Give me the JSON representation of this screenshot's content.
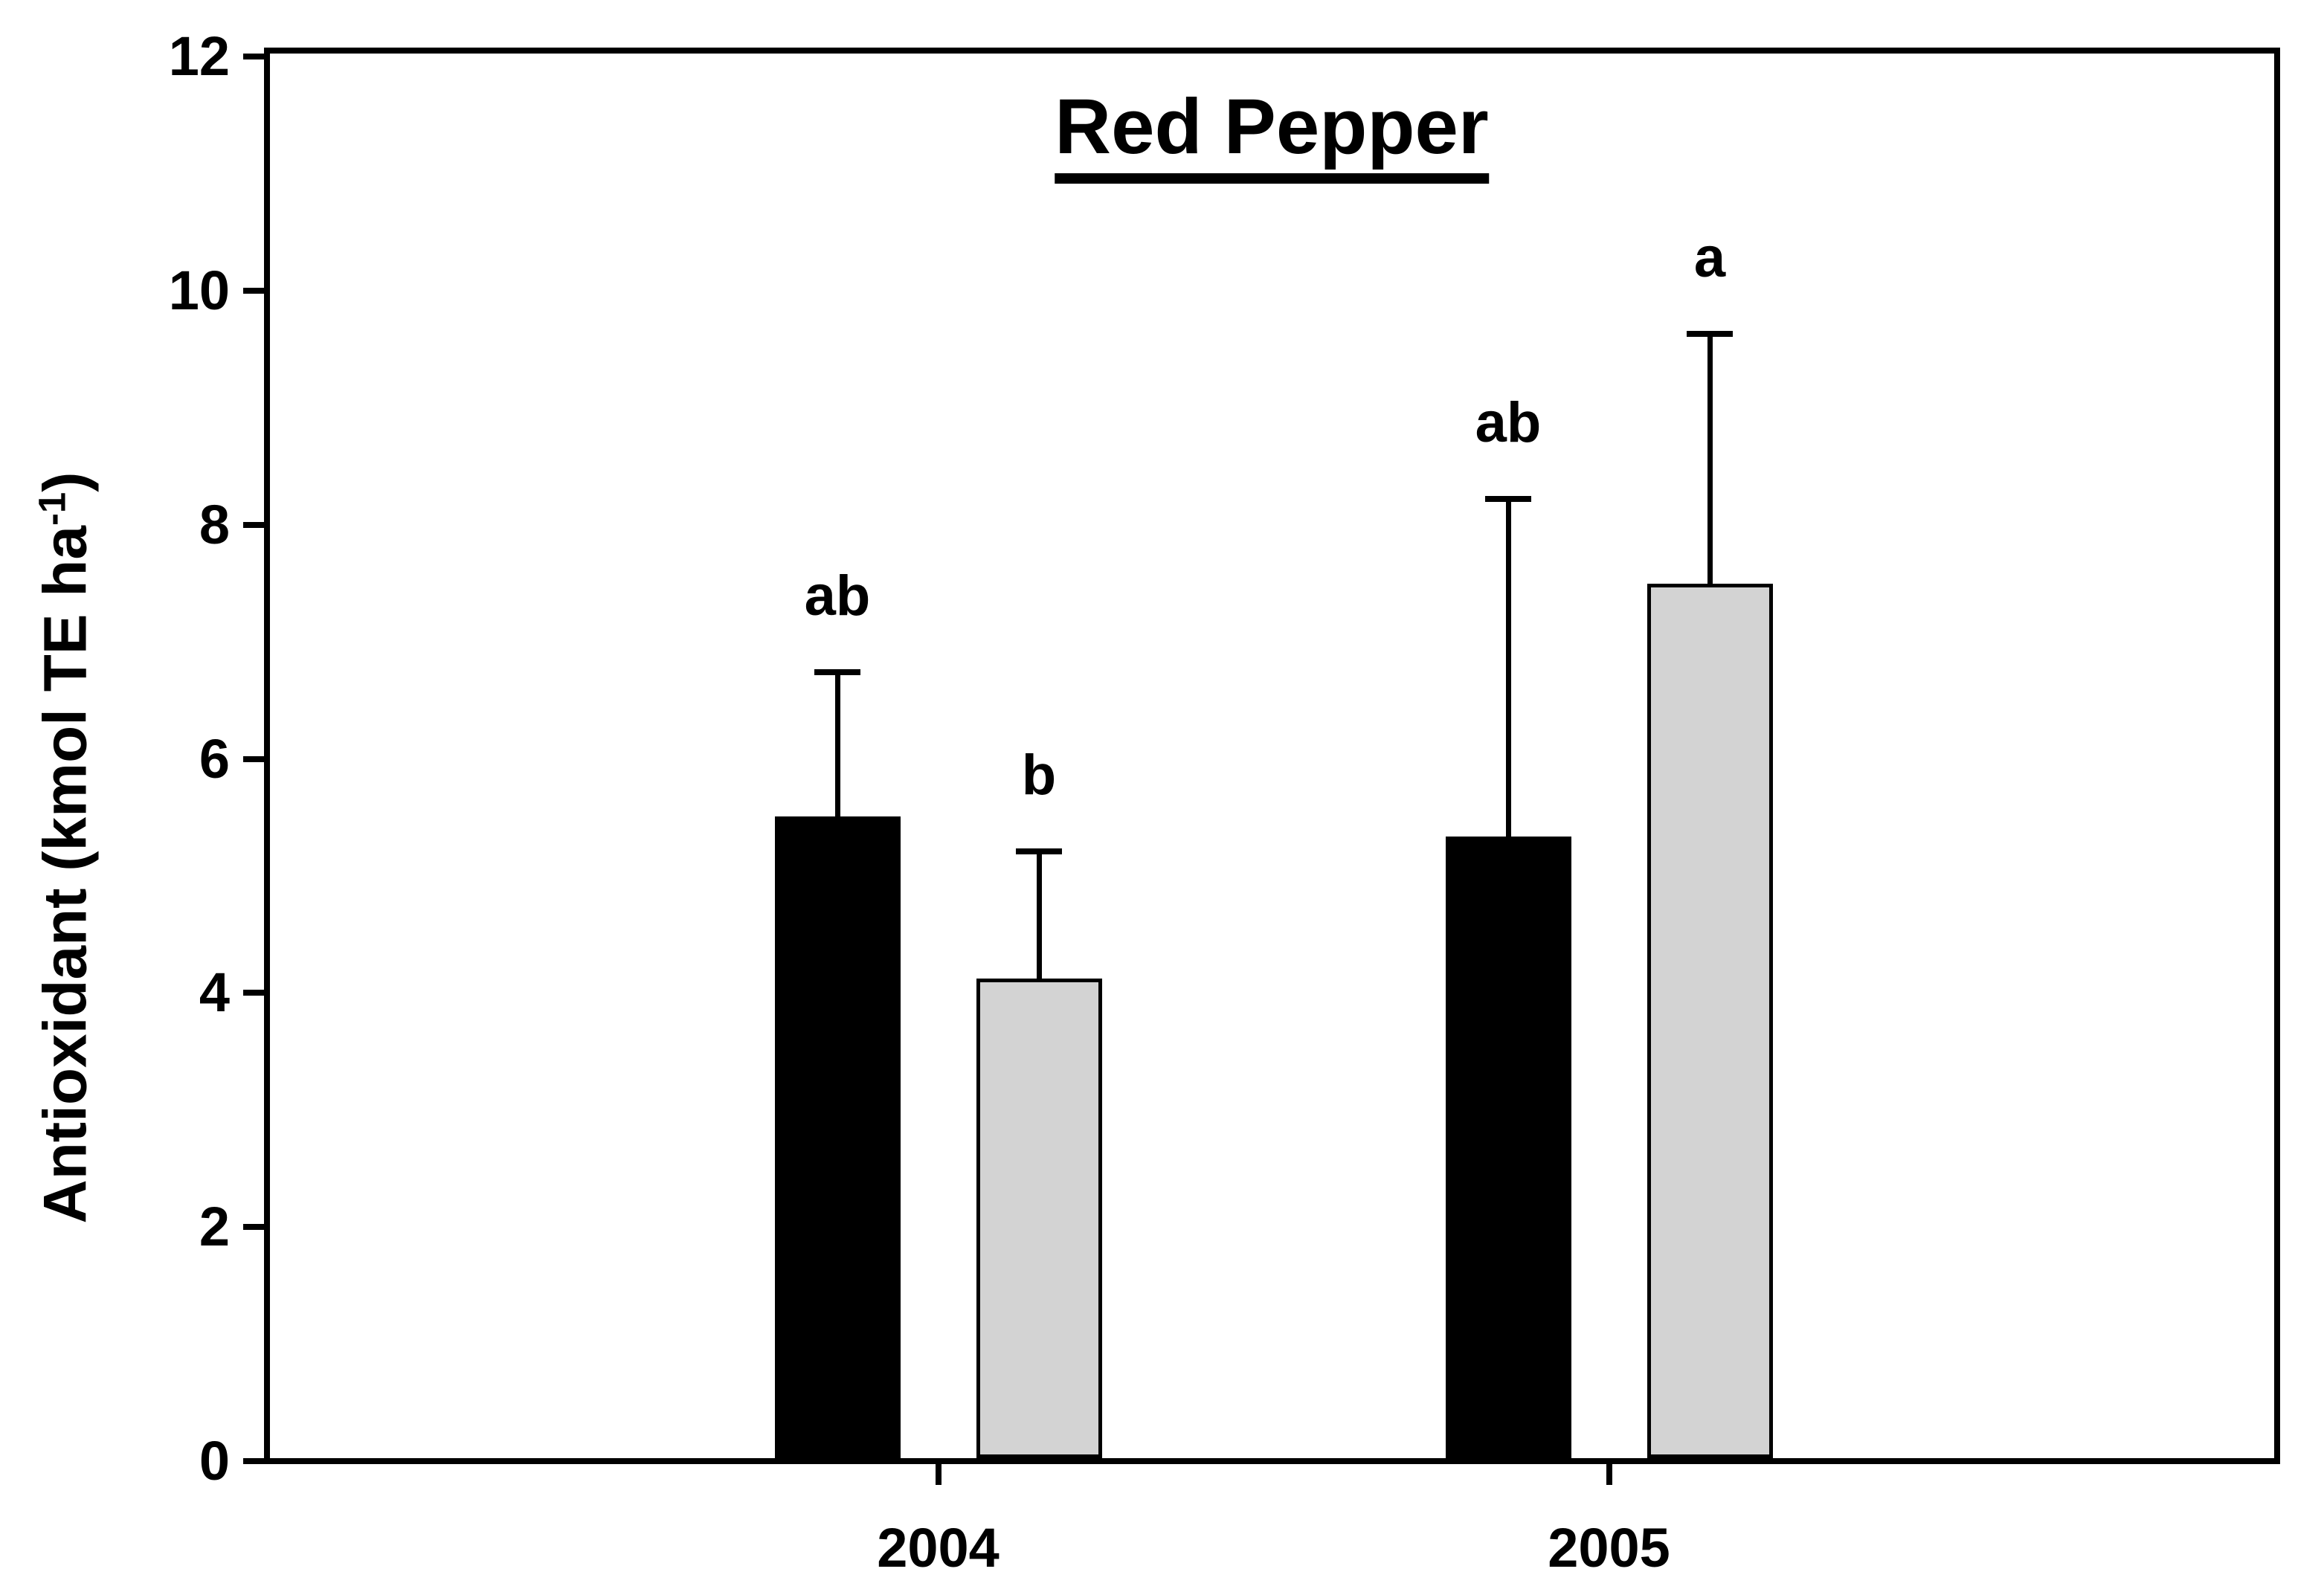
{
  "page": {
    "background_color": "#ffffff",
    "text_color": "#000000"
  },
  "chart_data": {
    "type": "bar",
    "title": "Red Pepper",
    "title_underlined": true,
    "ylabel": {
      "prefix": "Antioxidant (kmol TE ha",
      "superscript": "-1",
      "suffix": ")"
    },
    "xlabel": "",
    "categories": [
      "2004",
      "2005"
    ],
    "ylim": [
      0,
      12
    ],
    "yticks": [
      0,
      2,
      4,
      6,
      8,
      10,
      12
    ],
    "grid": false,
    "legend_position": "none",
    "bar_colors": {
      "series1": "#000000",
      "series2": "#d3d3d3"
    },
    "series": [
      {
        "name": "black-bars",
        "color": "#000000",
        "values": [
          5.48,
          5.31
        ],
        "errors_plus": [
          1.26,
          2.91
        ],
        "sig_letters": [
          "ab",
          "ab"
        ]
      },
      {
        "name": "gray-bars",
        "color": "#d3d3d3",
        "values": [
          4.1,
          7.47
        ],
        "errors_plus": [
          1.11,
          2.16
        ],
        "sig_letters": [
          "b",
          "a"
        ]
      }
    ]
  }
}
